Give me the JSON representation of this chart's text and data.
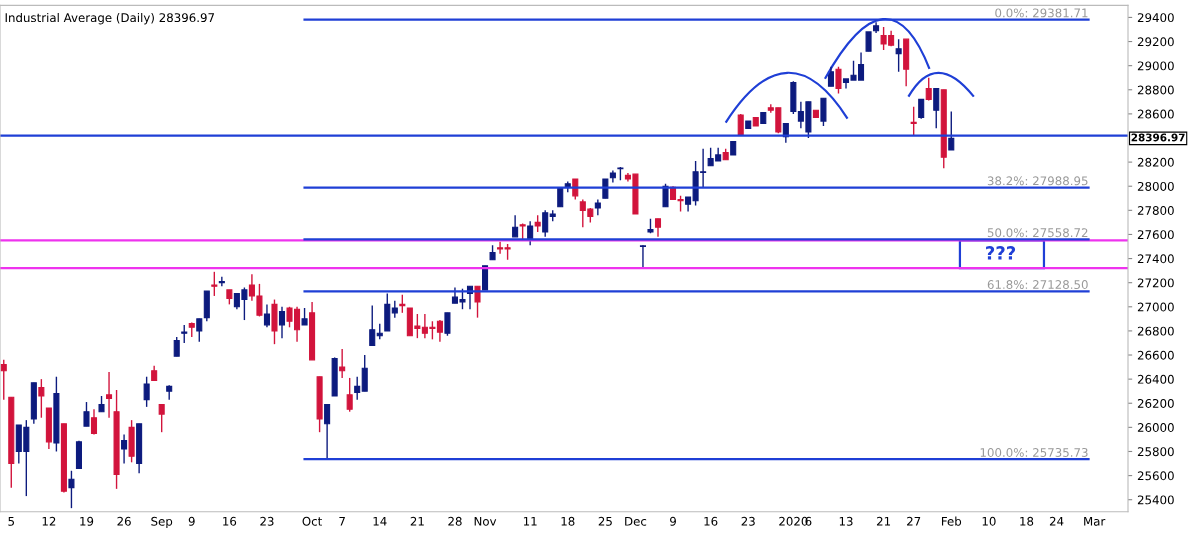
{
  "chart_data": {
    "type": "candlestick",
    "title": "Industrial Average (Daily) 28396.97",
    "categories": [
      null,
      "5",
      null,
      null,
      null,
      null,
      "12",
      null,
      null,
      null,
      null,
      "19",
      null,
      null,
      null,
      null,
      "26",
      null,
      null,
      null,
      null,
      "Sep",
      null,
      null,
      null,
      "9",
      null,
      null,
      null,
      null,
      "16",
      null,
      null,
      null,
      null,
      "23",
      null,
      null,
      null,
      null,
      null,
      "Oct",
      null,
      null,
      null,
      "7",
      null,
      null,
      null,
      null,
      "14",
      null,
      null,
      null,
      null,
      "21",
      null,
      null,
      null,
      null,
      "28",
      null,
      null,
      null,
      "Nov",
      null,
      null,
      null,
      null,
      null,
      "11",
      null,
      null,
      null,
      null,
      "18",
      null,
      null,
      null,
      null,
      "25",
      null,
      null,
      null,
      "Dec",
      null,
      null,
      null,
      null,
      "9",
      null,
      null,
      null,
      null,
      "16",
      null,
      null,
      null,
      null,
      "23",
      null,
      null,
      null,
      null,
      null,
      "2020",
      null,
      "6",
      null,
      null,
      null,
      null,
      "13",
      null,
      null,
      null,
      null,
      "21",
      null,
      null,
      null,
      "27",
      null,
      null,
      null,
      null,
      "Feb",
      null,
      null,
      null,
      null,
      "10",
      null,
      null,
      null,
      null,
      "18",
      null,
      null,
      null,
      "24",
      null,
      null,
      null,
      null,
      "Mar",
      null,
      null,
      null,
      null
    ],
    "ohlc": [
      [
        26520,
        26560,
        26230,
        26470
      ],
      [
        26250,
        26250,
        25500,
        25700
      ],
      [
        25800,
        26020,
        25700,
        26020
      ],
      [
        25800,
        26060,
        25430,
        26000
      ],
      [
        26070,
        26370,
        26030,
        26370
      ],
      [
        26330,
        26400,
        26080,
        26260
      ],
      [
        26160,
        26160,
        25820,
        25880
      ],
      [
        25870,
        26420,
        25800,
        26280
      ],
      [
        26030,
        26030,
        25460,
        25470
      ],
      [
        25500,
        25640,
        25330,
        25570
      ],
      [
        25660,
        25890,
        25660,
        25880
      ],
      [
        26010,
        26210,
        26010,
        26130
      ],
      [
        26080,
        26150,
        25940,
        25950
      ],
      [
        26130,
        26260,
        26130,
        26190
      ],
      [
        26270,
        26460,
        26080,
        26240
      ],
      [
        26130,
        26310,
        25490,
        25610
      ],
      [
        25820,
        25940,
        25700,
        25890
      ],
      [
        26000,
        26060,
        25710,
        25760
      ],
      [
        25700,
        26030,
        25620,
        26030
      ],
      [
        26230,
        26420,
        26170,
        26360
      ],
      [
        26470,
        26510,
        26390,
        26390
      ],
      [
        26190,
        26190,
        25960,
        26110
      ],
      [
        26300,
        26350,
        26230,
        26340
      ],
      [
        26590,
        26750,
        26590,
        26720
      ],
      [
        26780,
        26850,
        26700,
        26790
      ],
      [
        26860,
        26870,
        26750,
        26830
      ],
      [
        26800,
        26900,
        26710,
        26900
      ],
      [
        26910,
        27130,
        26880,
        27130
      ],
      [
        27180,
        27290,
        27090,
        27170
      ],
      [
        27200,
        27250,
        27170,
        27210
      ],
      [
        27140,
        27140,
        27020,
        27070
      ],
      [
        27000,
        27110,
        26980,
        27110
      ],
      [
        27060,
        27160,
        26890,
        27140
      ],
      [
        27180,
        27270,
        27050,
        27090
      ],
      [
        27090,
        27190,
        26920,
        26930
      ],
      [
        26850,
        27020,
        26830,
        26940
      ],
      [
        27020,
        27060,
        26690,
        26800
      ],
      [
        26850,
        27000,
        26740,
        26960
      ],
      [
        26990,
        27000,
        26830,
        26880
      ],
      [
        26980,
        27000,
        26710,
        26810
      ],
      [
        26850,
        26990,
        26850,
        26900
      ],
      [
        26950,
        27040,
        26560,
        26560
      ],
      [
        26420,
        26420,
        25960,
        26070
      ],
      [
        26030,
        26190,
        25740,
        26190
      ],
      [
        26260,
        26580,
        26260,
        26570
      ],
      [
        26500,
        26650,
        26410,
        26470
      ],
      [
        26270,
        26410,
        26130,
        26150
      ],
      [
        26290,
        26420,
        26230,
        26340
      ],
      [
        26300,
        26600,
        26300,
        26490
      ],
      [
        26680,
        27010,
        26680,
        26810
      ],
      [
        26760,
        26860,
        26730,
        26780
      ],
      [
        26800,
        27110,
        26800,
        27020
      ],
      [
        26950,
        27050,
        26910,
        26990
      ],
      [
        27020,
        27100,
        26950,
        27010
      ],
      [
        26990,
        26990,
        26760,
        26760
      ],
      [
        26840,
        26940,
        26740,
        26820
      ],
      [
        26830,
        26940,
        26740,
        26780
      ],
      [
        26830,
        26880,
        26730,
        26820
      ],
      [
        26880,
        26890,
        26710,
        26790
      ],
      [
        26780,
        26950,
        26760,
        26950
      ],
      [
        27030,
        27160,
        27030,
        27080
      ],
      [
        27040,
        27150,
        26980,
        27060
      ],
      [
        27110,
        27170,
        26980,
        27170
      ],
      [
        27170,
        27170,
        26910,
        27040
      ],
      [
        27140,
        27340,
        27140,
        27340
      ],
      [
        27390,
        27510,
        27390,
        27450
      ],
      [
        27490,
        27540,
        27440,
        27480
      ],
      [
        27490,
        27520,
        27390,
        27480
      ],
      [
        27580,
        27760,
        27580,
        27660
      ],
      [
        27680,
        27690,
        27560,
        27670
      ],
      [
        27560,
        27710,
        27510,
        27670
      ],
      [
        27700,
        27760,
        27620,
        27670
      ],
      [
        27620,
        27800,
        27580,
        27780
      ],
      [
        27750,
        27800,
        27710,
        27770
      ],
      [
        27830,
        27980,
        27830,
        27980
      ],
      [
        27990,
        28040,
        27950,
        28020
      ],
      [
        28060,
        28060,
        27890,
        27920
      ],
      [
        27870,
        27890,
        27660,
        27800
      ],
      [
        27810,
        27820,
        27700,
        27750
      ],
      [
        27820,
        27890,
        27760,
        27860
      ],
      [
        27900,
        28060,
        27900,
        28060
      ],
      [
        28070,
        28130,
        28030,
        28110
      ],
      [
        28145,
        28160,
        28050,
        28150
      ],
      [
        28090,
        28110,
        28040,
        28060
      ],
      [
        28100,
        28100,
        27770,
        27770
      ],
      [
        27500,
        27510,
        27320,
        27505
      ],
      [
        27620,
        27730,
        27610,
        27640
      ],
      [
        27730,
        27730,
        27580,
        27660
      ],
      [
        27830,
        28020,
        27830,
        28000
      ],
      [
        27990,
        28000,
        27890,
        27890
      ],
      [
        27890,
        27920,
        27790,
        27880
      ],
      [
        27850,
        27910,
        27790,
        27910
      ],
      [
        27880,
        28210,
        27840,
        28120
      ],
      [
        28115,
        28310,
        27990,
        28120
      ],
      [
        28170,
        28320,
        28170,
        28230
      ],
      [
        28210,
        28320,
        28210,
        28260
      ],
      [
        28280,
        28310,
        28220,
        28220
      ],
      [
        28260,
        28370,
        28260,
        28370
      ],
      [
        28590,
        28600,
        28430,
        28430
      ],
      [
        28480,
        28540,
        28480,
        28540
      ],
      [
        28570,
        28570,
        28500,
        28500
      ],
      [
        28520,
        28610,
        28520,
        28610
      ],
      [
        28650,
        28680,
        28610,
        28630
      ],
      [
        28650,
        28650,
        28440,
        28450
      ],
      [
        28410,
        28520,
        28360,
        28520
      ],
      [
        28620,
        28870,
        28600,
        28860
      ],
      [
        28540,
        28700,
        28480,
        28620
      ],
      [
        28450,
        28700,
        28400,
        28700
      ],
      [
        28630,
        28630,
        28570,
        28570
      ],
      [
        28540,
        28730,
        28500,
        28730
      ],
      [
        28830,
        28990,
        28830,
        28950
      ],
      [
        28970,
        28990,
        28770,
        28810
      ],
      [
        28860,
        28890,
        28810,
        28890
      ],
      [
        28880,
        29040,
        28880,
        28920
      ],
      [
        28880,
        29110,
        28880,
        29010
      ],
      [
        29120,
        29280,
        29120,
        29280
      ],
      [
        29290,
        29360,
        29270,
        29330
      ],
      [
        29250,
        29320,
        29130,
        29180
      ],
      [
        29250,
        29290,
        29160,
        29170
      ],
      [
        29100,
        29220,
        28950,
        29140
      ],
      [
        29220,
        29220,
        28830,
        28970
      ],
      [
        28530,
        28660,
        28420,
        28520
      ],
      [
        28570,
        28720,
        28560,
        28720
      ],
      [
        28810,
        28900,
        28710,
        28720
      ],
      [
        28630,
        28810,
        28480,
        28810
      ],
      [
        28800,
        28800,
        28150,
        28240
      ],
      [
        28300,
        28620,
        28300,
        28396.97
      ],
      null,
      null,
      null,
      null,
      null,
      null,
      null,
      null,
      null,
      null,
      null,
      null,
      null,
      null,
      null,
      null,
      null,
      null,
      null,
      null,
      null,
      null,
      null
    ],
    "colors": [
      "#d2143c",
      "#d2143c",
      "#0d1b7e",
      "#0d1b7e",
      "#0d1b7e",
      "#d2143c",
      "#d2143c",
      "#0d1b7e",
      "#d2143c",
      "#0d1b7e",
      "#0d1b7e",
      "#0d1b7e",
      "#d2143c",
      "#0d1b7e",
      "#d2143c",
      "#d2143c",
      "#0d1b7e",
      "#d2143c",
      "#0d1b7e",
      "#0d1b7e",
      "#d2143c",
      "#d2143c",
      "#0d1b7e",
      "#0d1b7e",
      "#0d1b7e",
      "#d2143c",
      "#0d1b7e",
      "#0d1b7e",
      "#d2143c",
      "#0d1b7e",
      "#d2143c",
      "#0d1b7e",
      "#0d1b7e",
      "#d2143c",
      "#d2143c",
      "#0d1b7e",
      "#d2143c",
      "#0d1b7e",
      "#d2143c",
      "#d2143c",
      "#0d1b7e",
      "#d2143c",
      "#d2143c",
      "#0d1b7e",
      "#0d1b7e",
      "#d2143c",
      "#d2143c",
      "#0d1b7e",
      "#0d1b7e",
      "#0d1b7e",
      "#0d1b7e",
      "#0d1b7e",
      "#0d1b7e",
      "#d2143c",
      "#d2143c",
      "#d2143c",
      "#d2143c",
      "#d2143c",
      "#d2143c",
      "#0d1b7e",
      "#0d1b7e",
      "#0d1b7e",
      "#0d1b7e",
      "#d2143c",
      "#0d1b7e",
      "#0d1b7e",
      "#d2143c",
      "#d2143c",
      "#0d1b7e",
      "#d2143c",
      "#0d1b7e",
      "#d2143c",
      "#0d1b7e",
      "#0d1b7e",
      "#0d1b7e",
      "#0d1b7e",
      "#d2143c",
      "#d2143c",
      "#d2143c",
      "#0d1b7e",
      "#0d1b7e",
      "#0d1b7e",
      "#0d1b7e",
      "#d2143c",
      "#d2143c",
      "#0d1b7e",
      "#0d1b7e",
      "#d2143c",
      "#0d1b7e",
      "#d2143c",
      "#d2143c",
      "#0d1b7e",
      "#0d1b7e",
      "#0d1b7e",
      "#0d1b7e",
      "#0d1b7e",
      "#d2143c",
      "#0d1b7e",
      "#d2143c",
      "#0d1b7e",
      "#d2143c",
      "#0d1b7e",
      "#d2143c",
      "#d2143c",
      "#0d1b7e",
      "#0d1b7e",
      "#0d1b7e",
      "#0d1b7e",
      "#d2143c",
      "#0d1b7e",
      "#0d1b7e",
      "#d2143c",
      "#0d1b7e",
      "#0d1b7e",
      "#0d1b7e",
      "#0d1b7e",
      "#0d1b7e",
      "#d2143c",
      "#d2143c",
      "#0d1b7e",
      "#d2143c",
      "#d2143c",
      "#0d1b7e",
      "#d2143c",
      "#0d1b7e",
      "#d2143c",
      "#0d1b7e",
      null,
      null,
      null,
      null,
      null,
      null,
      null,
      null,
      null,
      null,
      null,
      null,
      null,
      null,
      null,
      null,
      null,
      null,
      null,
      null,
      null,
      null,
      null
    ],
    "ylim": [
      25300,
      29500
    ],
    "yticks": [
      25400,
      25600,
      25800,
      26000,
      26200,
      26400,
      26600,
      26800,
      27000,
      27200,
      27400,
      27600,
      27800,
      28000,
      28200,
      28600,
      28800,
      29000,
      29200,
      29400
    ],
    "ref_lines": [
      {
        "axis": "y",
        "value": 28420,
        "color": "#1f3fd6"
      },
      {
        "axis": "y",
        "value": 27550,
        "color": "#ee33ee"
      },
      {
        "axis": "y",
        "value": 27320,
        "color": "#ee33ee"
      },
      {
        "axis": "y",
        "value": 29381.71,
        "label": "0.0%: 29381.71",
        "color": "#1f3fd6"
      },
      {
        "axis": "y",
        "value": 27988.95,
        "label": "38.2%: 27988.95",
        "color": "#1f3fd6"
      },
      {
        "axis": "y",
        "value": 27558.72,
        "label": "50.0%: 27558.72",
        "color": "#1f3fd6"
      },
      {
        "axis": "y",
        "value": 27128.5,
        "label": "61.8%: 27128.50",
        "color": "#1f3fd6"
      },
      {
        "axis": "y",
        "value": 25735.73,
        "label": "100.0%: 25735.73",
        "color": "#1f3fd6"
      }
    ],
    "annotations": [
      "28396.97",
      "???"
    ]
  }
}
